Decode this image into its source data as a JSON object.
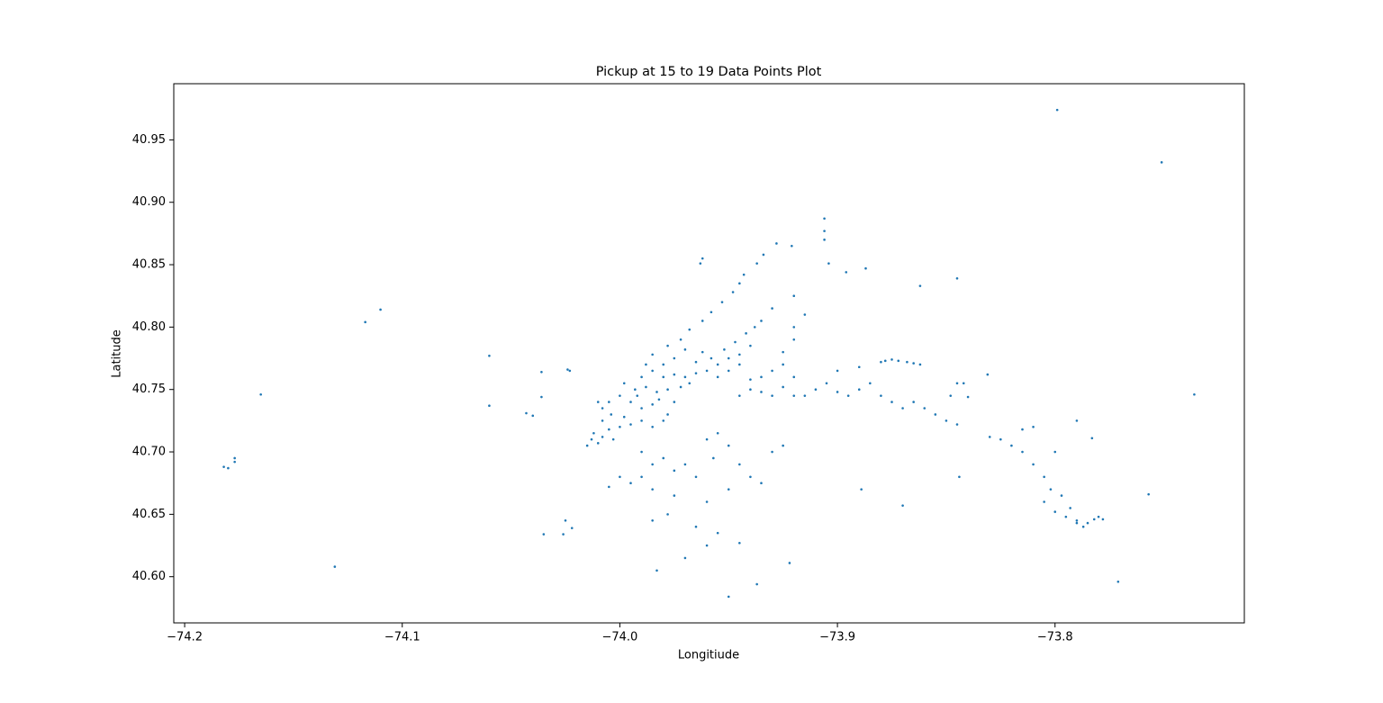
{
  "chart_data": {
    "type": "scatter",
    "title": "Pickup at 15 to 19 Data Points Plot",
    "x_label": "Longitiude",
    "y_label": "Latitude",
    "color": "#1f77b4",
    "xlim": [
      -74.205,
      -73.713
    ],
    "ylim": [
      40.563,
      40.995
    ],
    "xticks": [
      {
        "value": -74.2,
        "label": "−74.2"
      },
      {
        "value": -74.1,
        "label": "−74.1"
      },
      {
        "value": -74.0,
        "label": "−74.0"
      },
      {
        "value": -73.9,
        "label": "−73.9"
      },
      {
        "value": -73.8,
        "label": "−73.8"
      }
    ],
    "yticks": [
      {
        "value": 40.6,
        "label": "40.60"
      },
      40.65,
      {
        "value": 40.7,
        "label": "40.70"
      },
      40.75,
      {
        "value": 40.8,
        "label": "40.80"
      },
      40.85,
      {
        "value": 40.9,
        "label": "40.90"
      },
      40.95
    ],
    "x": [
      -74.182,
      -74.18,
      -74.177,
      -74.177,
      -74.165,
      -74.131,
      -74.117,
      -74.11,
      -74.06,
      -74.06,
      -74.043,
      -74.04,
      -74.036,
      -74.036,
      -74.035,
      -74.026,
      -74.025,
      -74.022,
      -74.024,
      -74.023,
      -73.799,
      -73.751,
      -73.736,
      -73.771,
      -73.757,
      -73.906,
      -73.906,
      -73.906,
      -73.904,
      -73.896,
      -73.887,
      -73.862,
      -73.845,
      -73.928,
      -73.921,
      -73.934,
      -73.937,
      -73.962,
      -73.963,
      -73.95,
      -73.937,
      -73.922,
      -73.983,
      -73.79,
      -73.783,
      -73.831,
      -73.844,
      -73.87,
      -73.889,
      -74.015,
      -74.013,
      -74.01,
      -74.012,
      -74.008,
      -74.005,
      -74.003,
      -74.0,
      -74.008,
      -74.004,
      -73.998,
      -73.995,
      -73.99,
      -73.985,
      -73.98,
      -73.978,
      -74.005,
      -74.0,
      -73.995,
      -73.99,
      -73.985,
      -73.982,
      -73.975,
      -73.998,
      -73.993,
      -73.988,
      -73.983,
      -73.978,
      -73.972,
      -73.968,
      -73.99,
      -73.985,
      -73.98,
      -73.975,
      -73.97,
      -73.965,
      -73.96,
      -73.955,
      -73.95,
      -73.945,
      -73.958,
      -73.952,
      -73.947,
      -73.942,
      -73.938,
      -73.935,
      -73.965,
      -73.962,
      -73.975,
      -73.98,
      -73.978,
      -73.972,
      -73.968,
      -73.962,
      -73.958,
      -73.953,
      -73.948,
      -73.945,
      -73.943,
      -73.985,
      -73.97,
      -73.988,
      -74.01,
      -74.008,
      -73.992,
      -73.955,
      -73.95,
      -73.945,
      -73.94,
      -73.99,
      -73.985,
      -73.98,
      -73.975,
      -73.97,
      -73.965,
      -73.96,
      -73.955,
      -73.95,
      -73.957,
      -73.945,
      -73.94,
      -73.99,
      -73.995,
      -74.0,
      -73.985,
      -73.975,
      -73.96,
      -73.95,
      -73.935,
      -73.93,
      -73.925,
      -73.965,
      -73.96,
      -73.955,
      -73.945,
      -73.978,
      -73.97,
      -74.005,
      -73.985,
      -73.945,
      -73.94,
      -73.935,
      -73.93,
      -73.925,
      -73.92,
      -73.915,
      -73.91,
      -73.905,
      -73.9,
      -73.895,
      -73.89,
      -73.885,
      -73.88,
      -73.875,
      -73.87,
      -73.865,
      -73.86,
      -73.855,
      -73.85,
      -73.845,
      -73.93,
      -73.925,
      -73.935,
      -73.94,
      -73.92,
      -73.9,
      -73.89,
      -73.878,
      -73.875,
      -73.872,
      -73.868,
      -73.865,
      -73.862,
      -73.88,
      -73.845,
      -73.842,
      -73.848,
      -73.84,
      -73.925,
      -73.92,
      -73.93,
      -73.92,
      -73.915,
      -73.92,
      -73.83,
      -73.825,
      -73.82,
      -73.815,
      -73.81,
      -73.805,
      -73.802,
      -73.805,
      -73.8,
      -73.795,
      -73.79,
      -73.785,
      -73.782,
      -73.78,
      -73.778,
      -73.787,
      -73.79,
      -73.793,
      -73.797,
      -73.81,
      -73.8,
      -73.815
    ],
    "values": [
      40.688,
      40.687,
      40.692,
      40.695,
      40.746,
      40.608,
      40.804,
      40.814,
      40.777,
      40.737,
      40.731,
      40.729,
      40.764,
      40.744,
      40.634,
      40.634,
      40.645,
      40.639,
      40.766,
      40.765,
      40.974,
      40.932,
      40.746,
      40.596,
      40.666,
      40.887,
      40.877,
      40.87,
      40.851,
      40.844,
      40.847,
      40.833,
      40.839,
      40.867,
      40.865,
      40.858,
      40.851,
      40.855,
      40.851,
      40.584,
      40.594,
      40.611,
      40.605,
      40.725,
      40.711,
      40.762,
      40.68,
      40.657,
      40.67,
      40.705,
      40.71,
      40.707,
      40.715,
      40.712,
      40.718,
      40.71,
      40.72,
      40.725,
      40.73,
      40.728,
      40.722,
      40.725,
      40.72,
      40.725,
      40.73,
      40.74,
      40.745,
      40.74,
      40.735,
      40.738,
      40.742,
      40.74,
      40.755,
      40.75,
      40.752,
      40.748,
      40.75,
      40.752,
      40.755,
      40.76,
      40.765,
      40.76,
      40.762,
      40.76,
      40.763,
      40.765,
      40.77,
      40.775,
      40.778,
      40.775,
      40.782,
      40.788,
      40.795,
      40.8,
      40.805,
      40.772,
      40.78,
      40.775,
      40.77,
      40.785,
      40.79,
      40.798,
      40.805,
      40.812,
      40.82,
      40.828,
      40.835,
      40.842,
      40.778,
      40.782,
      40.77,
      40.74,
      40.735,
      40.745,
      40.76,
      40.765,
      40.77,
      40.785,
      40.7,
      40.69,
      40.695,
      40.685,
      40.69,
      40.68,
      40.71,
      40.715,
      40.705,
      40.695,
      40.69,
      40.68,
      40.68,
      40.675,
      40.68,
      40.67,
      40.665,
      40.66,
      40.67,
      40.675,
      40.7,
      40.705,
      40.64,
      40.625,
      40.635,
      40.627,
      40.65,
      40.615,
      40.672,
      40.645,
      40.745,
      40.75,
      40.748,
      40.745,
      40.752,
      40.745,
      40.745,
      40.75,
      40.755,
      40.748,
      40.745,
      40.75,
      40.755,
      40.745,
      40.74,
      40.735,
      40.74,
      40.735,
      40.73,
      40.725,
      40.722,
      40.765,
      40.77,
      40.76,
      40.758,
      40.76,
      40.765,
      40.768,
      40.773,
      40.774,
      40.773,
      40.772,
      40.771,
      40.77,
      40.772,
      40.755,
      40.755,
      40.745,
      40.744,
      40.78,
      40.79,
      40.815,
      40.825,
      40.81,
      40.8,
      40.712,
      40.71,
      40.705,
      40.7,
      40.69,
      40.68,
      40.67,
      40.66,
      40.652,
      40.648,
      40.645,
      40.643,
      40.646,
      40.648,
      40.646,
      40.64,
      40.643,
      40.655,
      40.665,
      40.72,
      40.7,
      40.718
    ]
  }
}
